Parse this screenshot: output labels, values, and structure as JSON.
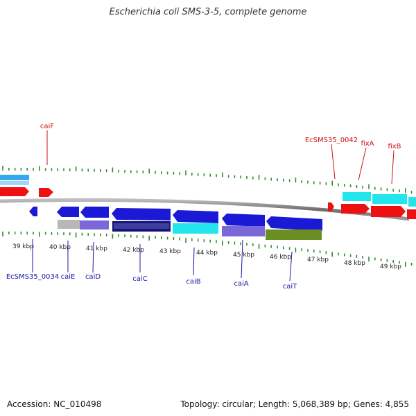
{
  "title": "Escherichia coli SMS-3-5, complete genome",
  "footer": {
    "accession": "Accession: NC_010498",
    "summary": "Topology: circular; Length: 5,068,389 bp; Genes: 4,855"
  },
  "ticks": [
    "39 kbp",
    "40 kbp",
    "41 kbp",
    "42 kbp",
    "43 kbp",
    "44 kbp",
    "45 kbp",
    "46 kbp",
    "47 kbp",
    "48 kbp",
    "49 kbp"
  ],
  "genes_reverse": [
    "EcSMS35_0034",
    "caiE",
    "caiD",
    "caiC",
    "caiB",
    "caiA",
    "caiT"
  ],
  "genes_forward": [
    "caiF",
    "EcSMS35_0042",
    "fixA",
    "fixB"
  ],
  "colors": {
    "blue": "#1a1ad6",
    "red": "#ee1111",
    "cyan": "#22e6ec",
    "lightblue": "#33aaee",
    "lavender": "#7b68d8",
    "gray": "#b8b8b8",
    "navy": "#15157a",
    "olive": "#6b8e23",
    "tick": "#2e8b2e",
    "backbone": "#888888"
  }
}
